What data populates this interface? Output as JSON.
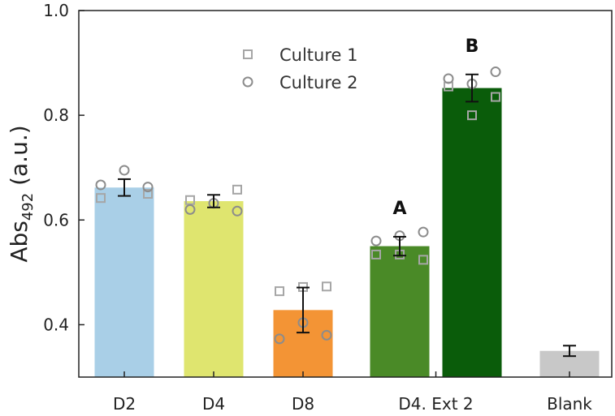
{
  "chart_data": {
    "type": "bar",
    "ylabel_prefix": "Abs",
    "ylabel_subscript": "492",
    "ylabel_suffix": " (a.u.)",
    "ylim": [
      0.3,
      1.0
    ],
    "yticks": [
      {
        "value": 0.4,
        "label": "0.4"
      },
      {
        "value": 0.6,
        "label": "0.6"
      },
      {
        "value": 0.8,
        "label": "0.8"
      },
      {
        "value": 1.0,
        "label": "1.0"
      }
    ],
    "categories": [
      "D2",
      "D4",
      "D8",
      "D4. Ext 2",
      "Blank"
    ],
    "bars": [
      {
        "label": "D2",
        "value": 0.662,
        "error": 0.016,
        "color": "#a9cfe7"
      },
      {
        "label": "D4",
        "value": 0.636,
        "error": 0.012,
        "color": "#dfe56f"
      },
      {
        "label": "D8",
        "value": 0.428,
        "error": 0.043,
        "color": "#f39435"
      },
      {
        "label": "",
        "value": 0.55,
        "error": 0.018,
        "color": "#4a8a27"
      },
      {
        "label": "",
        "value": 0.852,
        "error": 0.026,
        "color": "#0a5c0a"
      },
      {
        "label": "Blank",
        "value": 0.35,
        "error": 0.01,
        "color": "#c8c8c8"
      }
    ],
    "category_groups": [
      {
        "label": "D2",
        "bars": [
          0
        ]
      },
      {
        "label": "D4",
        "bars": [
          1
        ]
      },
      {
        "label": "D8",
        "bars": [
          2
        ]
      },
      {
        "label": "D4. Ext 2",
        "bars": [
          3,
          4
        ]
      },
      {
        "label": "Blank",
        "bars": [
          5
        ]
      }
    ],
    "series": [
      {
        "name": "Culture 1",
        "marker": "square",
        "color": "#a6a6a6",
        "points": [
          [
            0,
            0.642
          ],
          [
            0,
            0.65
          ],
          [
            1,
            0.638
          ],
          [
            1,
            0.658
          ],
          [
            2,
            0.464
          ],
          [
            2,
            0.472
          ],
          [
            2,
            0.473
          ],
          [
            3,
            0.534
          ],
          [
            3,
            0.534
          ],
          [
            3,
            0.524
          ],
          [
            4,
            0.855
          ],
          [
            4,
            0.8
          ],
          [
            4,
            0.835
          ]
        ]
      },
      {
        "name": "Culture 2",
        "marker": "circle",
        "color": "#8c8c8c",
        "points": [
          [
            0,
            0.667
          ],
          [
            0,
            0.695
          ],
          [
            0,
            0.663
          ],
          [
            1,
            0.62
          ],
          [
            1,
            0.632
          ],
          [
            1,
            0.617
          ],
          [
            2,
            0.373
          ],
          [
            2,
            0.404
          ],
          [
            2,
            0.38
          ],
          [
            3,
            0.56
          ],
          [
            3,
            0.57
          ],
          [
            3,
            0.577
          ],
          [
            4,
            0.87
          ],
          [
            4,
            0.86
          ],
          [
            4,
            0.883
          ]
        ]
      }
    ],
    "annotations": [
      {
        "bar": 3,
        "text": "A"
      },
      {
        "bar": 4,
        "text": "B"
      }
    ],
    "legend_position": "top-center",
    "grid": false
  }
}
